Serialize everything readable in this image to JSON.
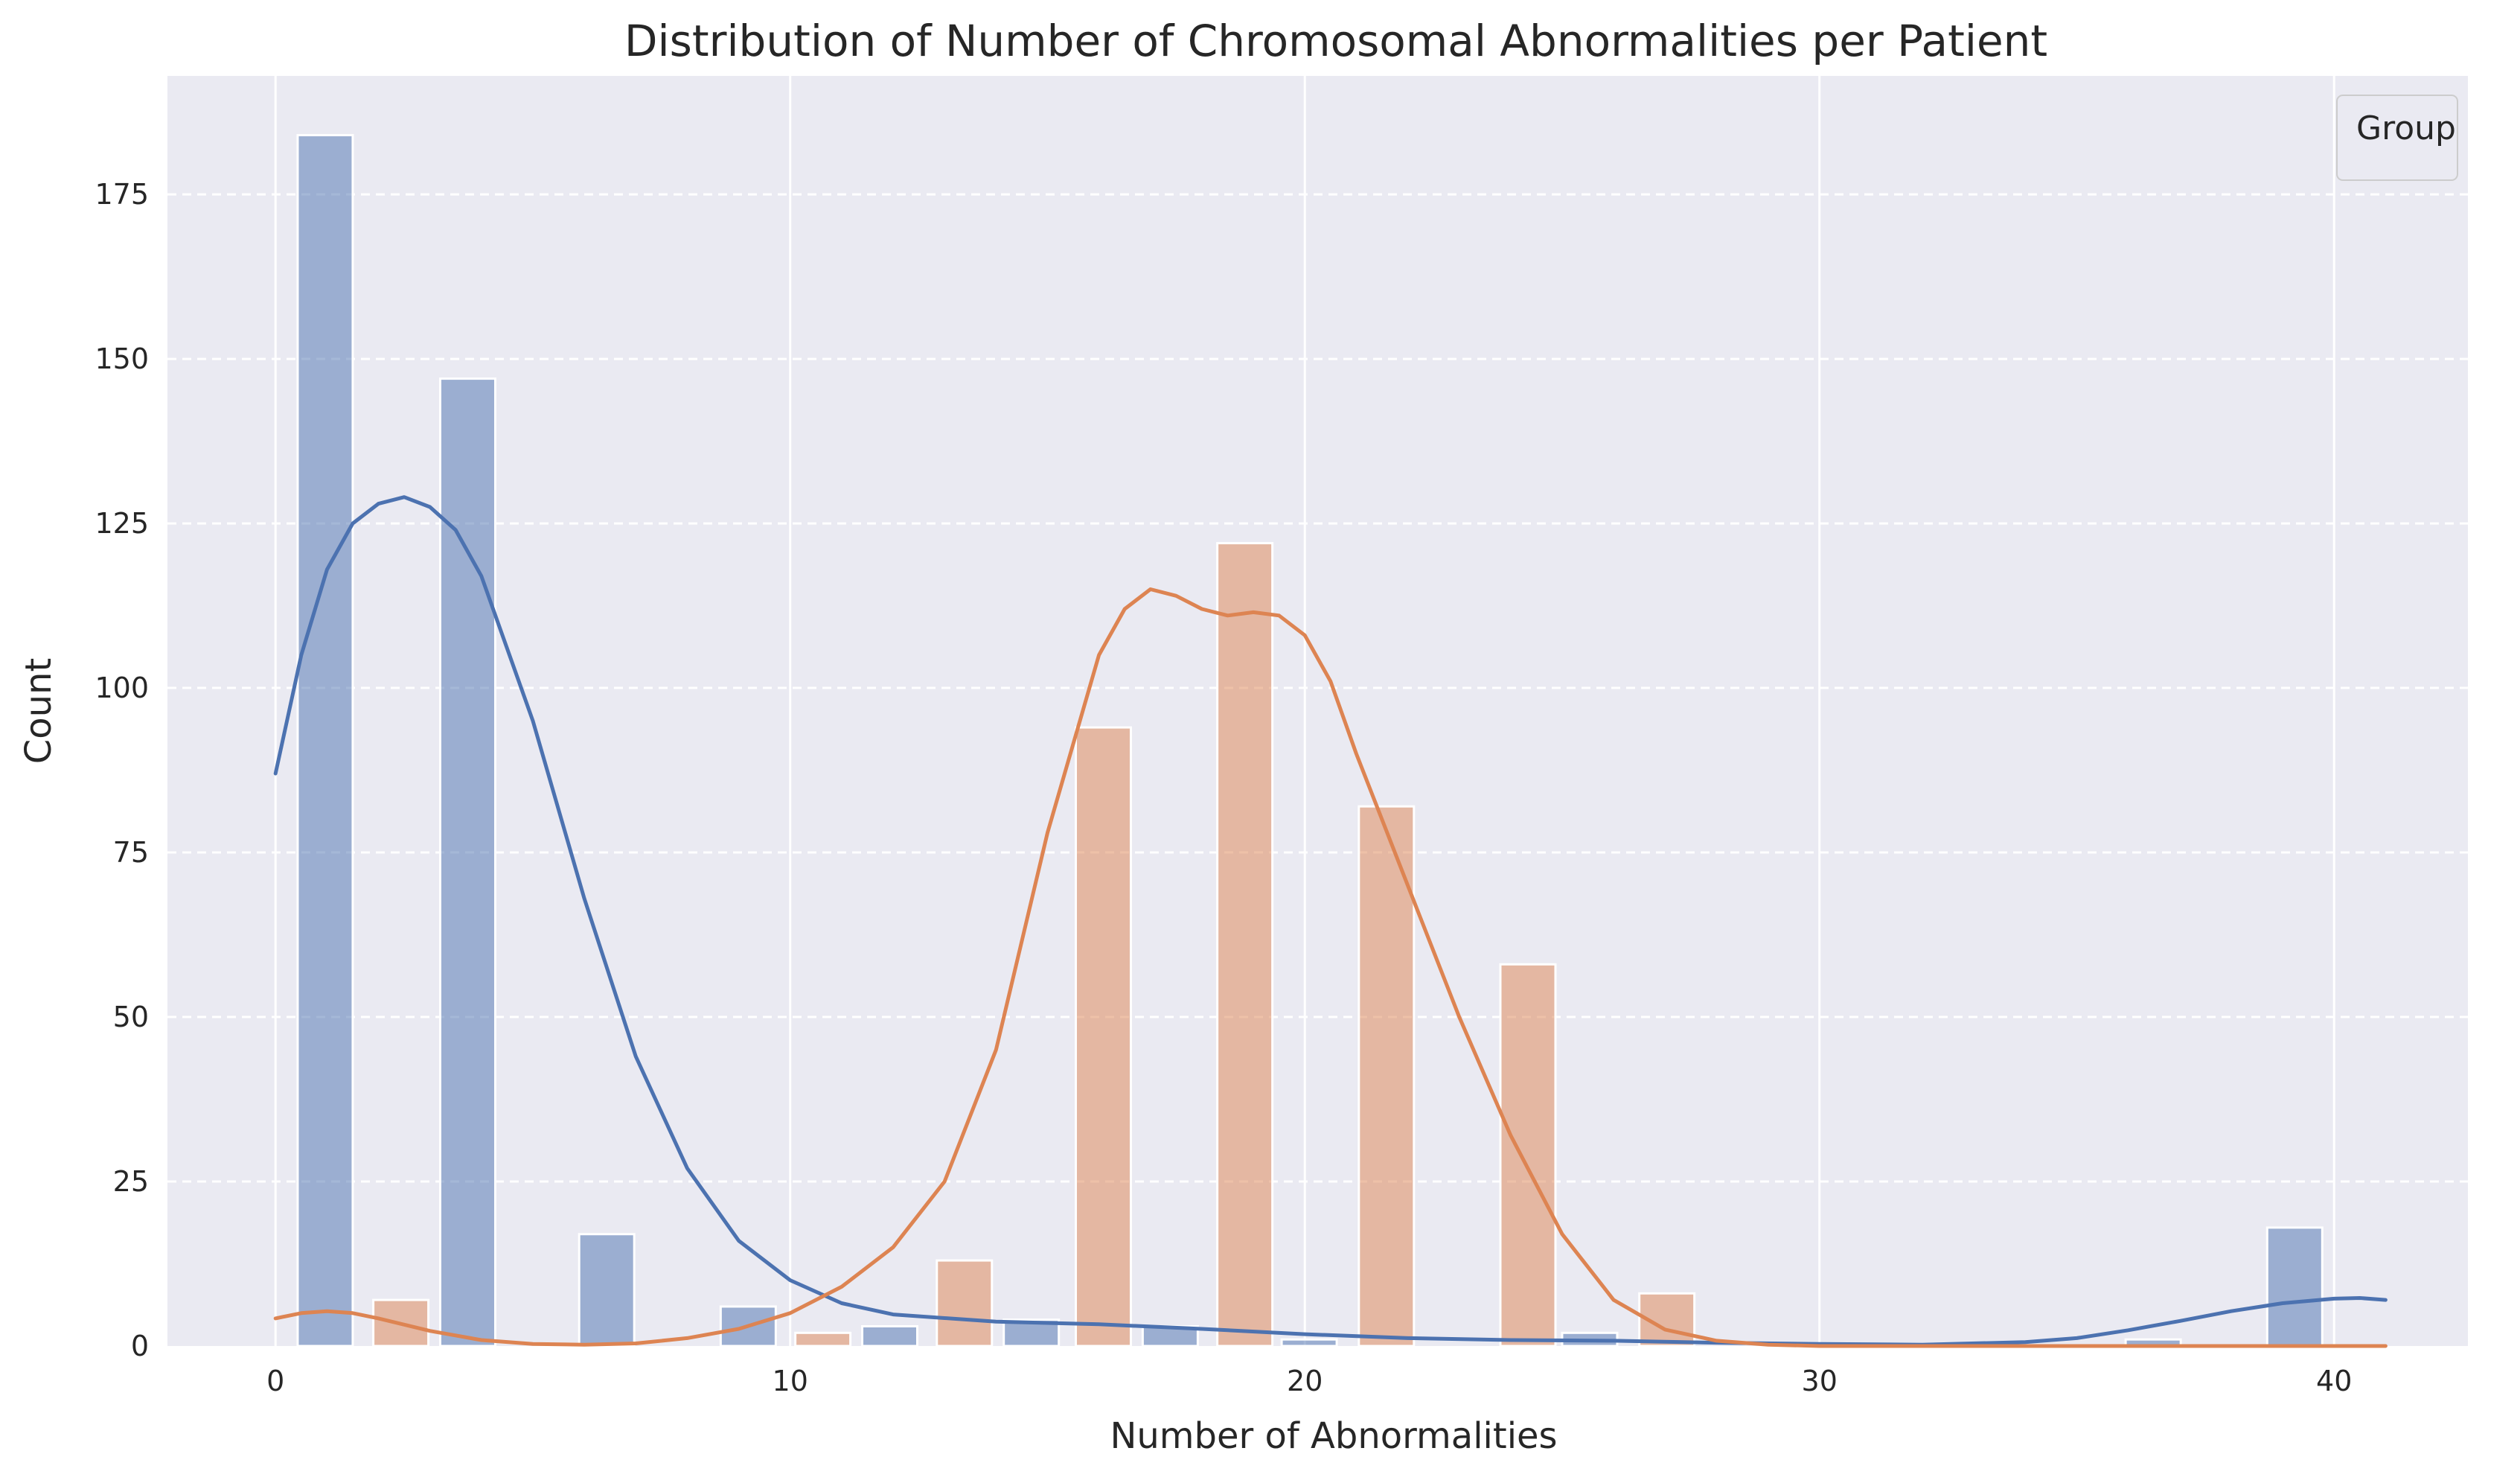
{
  "chart_data": {
    "type": "bar",
    "title": "Distribution of Number of Chromosomal Abnormalities per Patient",
    "xlabel": "Number of Abnormalities",
    "ylabel": "Count",
    "xlim": [
      -2.1,
      42.6
    ],
    "ylim": [
      0,
      193
    ],
    "xticks": [
      0,
      10,
      20,
      30,
      40
    ],
    "yticks": [
      0,
      25,
      50,
      75,
      100,
      125,
      150,
      175
    ],
    "grid": true,
    "bin_width": 1.07,
    "legend": {
      "title": "Group",
      "placement": "top-right"
    },
    "colors": {
      "background": "#eaeaf2",
      "grid": "#ffffff",
      "series_blue": "#4c72b0",
      "series_orange": "#dd8452"
    },
    "series": [
      {
        "color": "#4c72b0",
        "bars": [
          {
            "x": 0.43,
            "y": 184
          },
          {
            "x": 3.2,
            "y": 147
          },
          {
            "x": 5.9,
            "y": 17
          },
          {
            "x": 8.65,
            "y": 6
          },
          {
            "x": 11.4,
            "y": 3
          },
          {
            "x": 14.15,
            "y": 4
          },
          {
            "x": 16.85,
            "y": 3
          },
          {
            "x": 19.55,
            "y": 1
          },
          {
            "x": 25.0,
            "y": 2
          },
          {
            "x": 35.95,
            "y": 1
          },
          {
            "x": 38.7,
            "y": 18
          }
        ],
        "kde": [
          {
            "x": 0,
            "y": 87
          },
          {
            "x": 0.5,
            "y": 105
          },
          {
            "x": 1,
            "y": 118
          },
          {
            "x": 1.5,
            "y": 125
          },
          {
            "x": 2,
            "y": 128
          },
          {
            "x": 2.5,
            "y": 129
          },
          {
            "x": 3,
            "y": 127.5
          },
          {
            "x": 3.5,
            "y": 124
          },
          {
            "x": 4,
            "y": 117
          },
          {
            "x": 5,
            "y": 95
          },
          {
            "x": 6,
            "y": 68
          },
          {
            "x": 7,
            "y": 44
          },
          {
            "x": 8,
            "y": 27
          },
          {
            "x": 9,
            "y": 16
          },
          {
            "x": 10,
            "y": 10
          },
          {
            "x": 11,
            "y": 6.5
          },
          {
            "x": 12,
            "y": 4.8
          },
          {
            "x": 14,
            "y": 3.7
          },
          {
            "x": 16,
            "y": 3.3
          },
          {
            "x": 18,
            "y": 2.6
          },
          {
            "x": 20,
            "y": 1.8
          },
          {
            "x": 22,
            "y": 1.2
          },
          {
            "x": 24,
            "y": 0.9
          },
          {
            "x": 26,
            "y": 0.8
          },
          {
            "x": 28,
            "y": 0.5
          },
          {
            "x": 30,
            "y": 0.3
          },
          {
            "x": 32,
            "y": 0.2
          },
          {
            "x": 34,
            "y": 0.6
          },
          {
            "x": 35,
            "y": 1.2
          },
          {
            "x": 36,
            "y": 2.4
          },
          {
            "x": 37,
            "y": 3.8
          },
          {
            "x": 38,
            "y": 5.3
          },
          {
            "x": 39,
            "y": 6.5
          },
          {
            "x": 40,
            "y": 7.2
          },
          {
            "x": 40.5,
            "y": 7.3
          },
          {
            "x": 41,
            "y": 7
          }
        ]
      },
      {
        "color": "#dd8452",
        "bars": [
          {
            "x": 1.9,
            "y": 7
          },
          {
            "x": 10.1,
            "y": 2
          },
          {
            "x": 12.85,
            "y": 13
          },
          {
            "x": 15.55,
            "y": 94
          },
          {
            "x": 18.3,
            "y": 122
          },
          {
            "x": 21.05,
            "y": 82
          },
          {
            "x": 23.8,
            "y": 58
          },
          {
            "x": 26.5,
            "y": 8
          }
        ],
        "kde": [
          {
            "x": 0,
            "y": 4.2
          },
          {
            "x": 0.5,
            "y": 5
          },
          {
            "x": 1,
            "y": 5.3
          },
          {
            "x": 1.5,
            "y": 5
          },
          {
            "x": 2,
            "y": 4.2
          },
          {
            "x": 3,
            "y": 2.3
          },
          {
            "x": 4,
            "y": 0.9
          },
          {
            "x": 5,
            "y": 0.3
          },
          {
            "x": 6,
            "y": 0.2
          },
          {
            "x": 7,
            "y": 0.4
          },
          {
            "x": 8,
            "y": 1.2
          },
          {
            "x": 9,
            "y": 2.6
          },
          {
            "x": 10,
            "y": 5
          },
          {
            "x": 11,
            "y": 9
          },
          {
            "x": 12,
            "y": 15
          },
          {
            "x": 13,
            "y": 25
          },
          {
            "x": 14,
            "y": 45
          },
          {
            "x": 15,
            "y": 78
          },
          {
            "x": 16,
            "y": 105
          },
          {
            "x": 16.5,
            "y": 112
          },
          {
            "x": 17,
            "y": 115
          },
          {
            "x": 17.5,
            "y": 114
          },
          {
            "x": 18,
            "y": 112
          },
          {
            "x": 18.5,
            "y": 111
          },
          {
            "x": 19,
            "y": 111.5
          },
          {
            "x": 19.5,
            "y": 111
          },
          {
            "x": 20,
            "y": 108
          },
          {
            "x": 20.5,
            "y": 101
          },
          {
            "x": 21,
            "y": 90
          },
          {
            "x": 22,
            "y": 70
          },
          {
            "x": 23,
            "y": 50
          },
          {
            "x": 24,
            "y": 32
          },
          {
            "x": 25,
            "y": 17
          },
          {
            "x": 26,
            "y": 7
          },
          {
            "x": 27,
            "y": 2.5
          },
          {
            "x": 28,
            "y": 0.8
          },
          {
            "x": 29,
            "y": 0.2
          },
          {
            "x": 30,
            "y": 0
          },
          {
            "x": 35,
            "y": 0
          },
          {
            "x": 41,
            "y": 0
          }
        ]
      }
    ]
  }
}
